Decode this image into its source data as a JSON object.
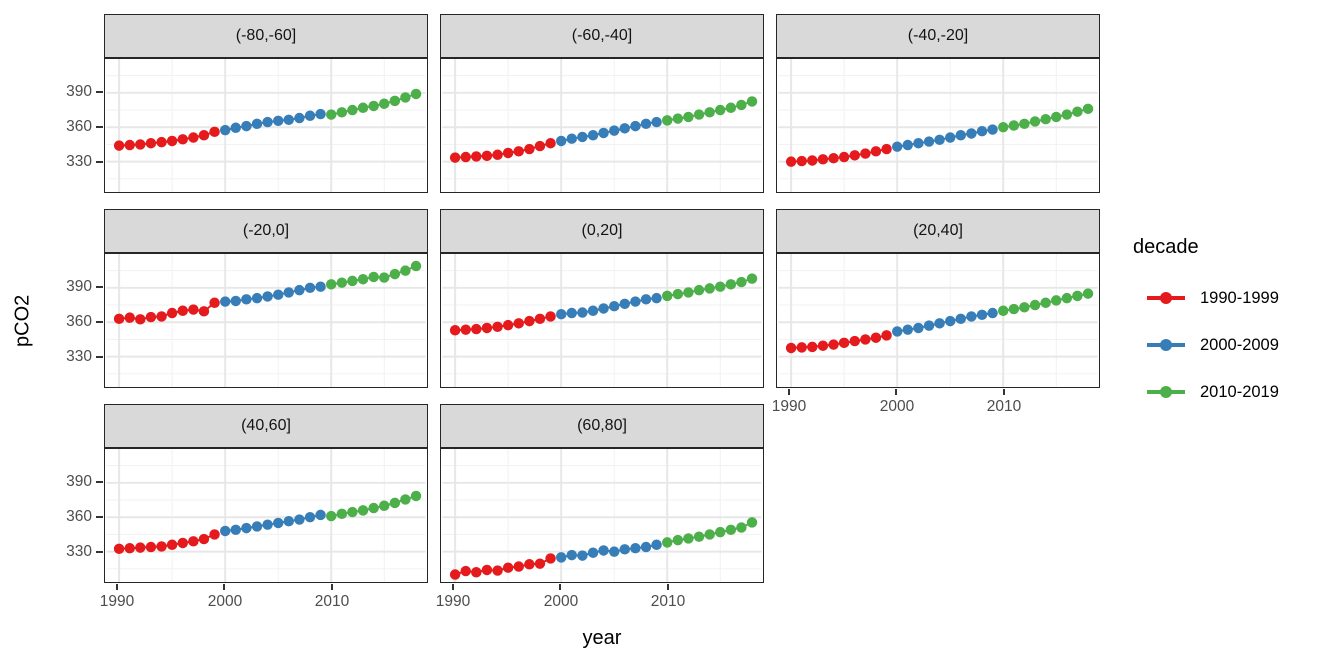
{
  "figure": {
    "y_axis_title": "pCO2",
    "x_axis_title": "year"
  },
  "legend": {
    "title": "decade",
    "entries": [
      {
        "label": "1990-1999",
        "color": "#E41A1C"
      },
      {
        "label": "2000-2009",
        "color": "#377EB8"
      },
      {
        "label": "2010-2019",
        "color": "#4DAF4A"
      }
    ]
  },
  "colors": {
    "decade_1990s": "#E41A1C",
    "decade_2000s": "#377EB8",
    "decade_2010s": "#4DAF4A",
    "strip_background": "#d9d9d9",
    "panel_border": "#262626",
    "grid_major": "#e7e7e7",
    "grid_minor": "#f1f1f1",
    "axis_text": "#4d4d4d"
  },
  "chart_data": {
    "type": "scatter",
    "title": "",
    "xlabel": "year",
    "ylabel": "pCO2",
    "legend_title": "decade",
    "legend_position": "right",
    "grid": true,
    "x_ticks": [
      1990,
      2000,
      2010
    ],
    "y_ticks": [
      390,
      360,
      330
    ],
    "x_minor_ticks": [
      1995,
      2005,
      2015
    ],
    "y_minor_ticks": [
      315,
      345,
      375,
      405
    ],
    "xlim": [
      1988.8,
      2018.9
    ],
    "ylim": [
      303.5,
      419.5
    ],
    "years": [
      1990,
      1991,
      1992,
      1993,
      1994,
      1995,
      1996,
      1997,
      1998,
      1999,
      2000,
      2001,
      2002,
      2003,
      2004,
      2005,
      2006,
      2007,
      2008,
      2009,
      2010,
      2011,
      2012,
      2013,
      2014,
      2015,
      2016,
      2017,
      2018
    ],
    "decades": [
      {
        "name": "1990-1999",
        "start_index": 0,
        "end_index": 9,
        "color": "#E41A1C"
      },
      {
        "name": "2000-2009",
        "start_index": 10,
        "end_index": 19,
        "color": "#377EB8"
      },
      {
        "name": "2010-2019",
        "start_index": 20,
        "end_index": 28,
        "color": "#4DAF4A"
      }
    ],
    "facets": [
      {
        "label": "(-80,-60]",
        "pco2": [
          344,
          344.5,
          345,
          346,
          347,
          348,
          349.5,
          351,
          353,
          356,
          357.5,
          359.5,
          361,
          363,
          364.5,
          365.5,
          366.5,
          368,
          370,
          371.5,
          371,
          373,
          375,
          377,
          378.5,
          380.5,
          383,
          386,
          389
        ]
      },
      {
        "label": "(-60,-40]",
        "pco2": [
          333.5,
          334,
          334.5,
          335,
          336,
          337.5,
          339,
          341,
          343.5,
          346,
          348,
          350,
          351.5,
          353,
          355,
          357,
          359,
          361,
          363,
          364.5,
          366,
          367.5,
          369,
          371,
          373,
          375,
          377,
          379.5,
          382.5
        ]
      },
      {
        "label": "(-40,-20]",
        "pco2": [
          330,
          330.5,
          331,
          332,
          333,
          334,
          335.5,
          337,
          339,
          341,
          343,
          344.5,
          346,
          347.5,
          349,
          351,
          353,
          354.5,
          356.5,
          358,
          360,
          361.5,
          363,
          365,
          367,
          369,
          371,
          373.5,
          376
        ]
      },
      {
        "label": "(-20,0]",
        "pco2": [
          363,
          364,
          362.5,
          364.5,
          365,
          368,
          370,
          371,
          369.5,
          377,
          378,
          378.5,
          380,
          381,
          382.5,
          384,
          386,
          388,
          390,
          391,
          393,
          394.5,
          396,
          397.5,
          399.5,
          399,
          402,
          405,
          409
        ]
      },
      {
        "label": "(0,20]",
        "pco2": [
          353,
          353.5,
          354,
          355,
          356,
          357.5,
          359,
          361,
          363,
          365,
          367,
          368,
          368.5,
          370,
          372,
          374,
          376,
          378,
          380,
          381,
          383,
          384.5,
          386,
          388,
          389.5,
          391,
          393,
          395,
          398
        ]
      },
      {
        "label": "(20,40]",
        "pco2": [
          337.5,
          338,
          338.5,
          339.5,
          340.5,
          342,
          343.5,
          345,
          346.5,
          348.5,
          352,
          353.5,
          355,
          357,
          359,
          361,
          363,
          365,
          366.5,
          368,
          370,
          371.5,
          373,
          375,
          377,
          379,
          381,
          383,
          385
        ]
      },
      {
        "label": "(40,60]",
        "pco2": [
          332.5,
          333,
          333.5,
          334,
          334.5,
          336,
          337.5,
          339,
          341,
          345,
          348,
          349,
          350.5,
          352,
          353.5,
          355,
          356.5,
          358,
          360,
          362,
          361,
          363,
          364.5,
          366,
          368,
          370,
          372.5,
          375.5,
          378.5
        ]
      },
      {
        "label": "(60,80]",
        "pco2": [
          310,
          313,
          312,
          314,
          313.5,
          316,
          317,
          319,
          319.5,
          324,
          325,
          327,
          326.5,
          329,
          331,
          330,
          332,
          333,
          334,
          336,
          338,
          340,
          341.5,
          343,
          345,
          347,
          349,
          351,
          355.5
        ]
      }
    ]
  }
}
